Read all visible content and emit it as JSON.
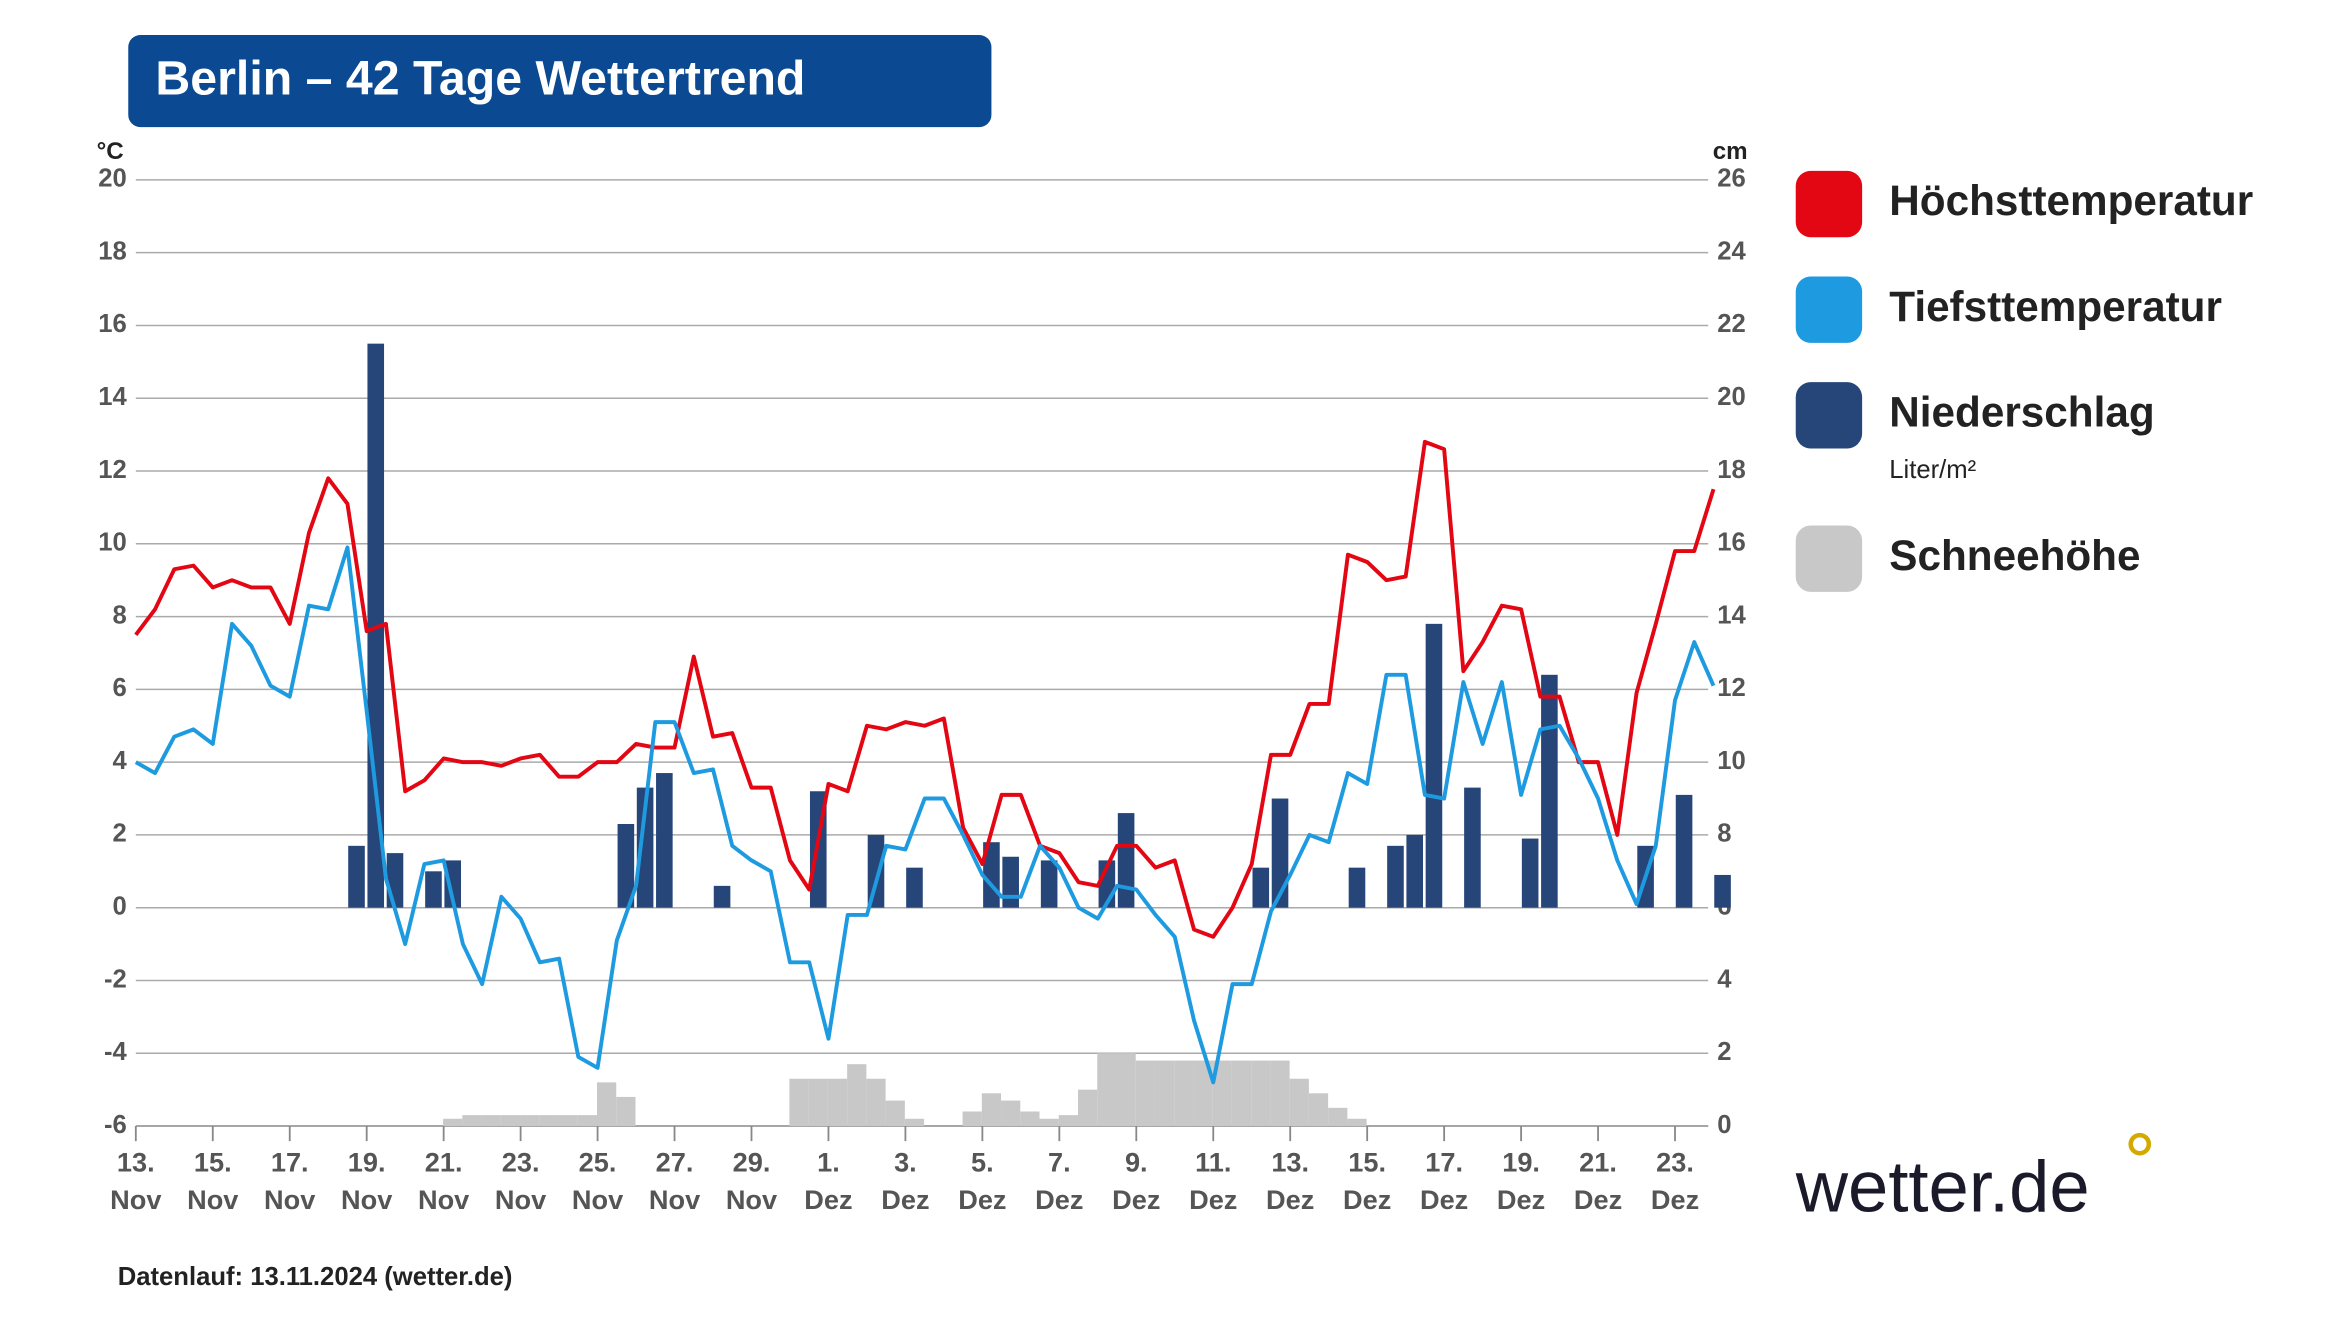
{
  "chart_data": {
    "type": "combo",
    "title": "Berlin – 42 Tage Wettertrend",
    "ylabel": "°C",
    "y2label": "cm",
    "categories": [
      "13. Nov",
      null,
      null,
      null,
      "15. Nov",
      null,
      null,
      null,
      "17. Nov",
      null,
      null,
      null,
      "19. Nov",
      null,
      null,
      null,
      "21. Nov",
      null,
      null,
      null,
      "23. Nov",
      null,
      null,
      null,
      "25. Nov",
      null,
      null,
      null,
      "27. Nov",
      null,
      null,
      null,
      "29. Nov",
      null,
      null,
      null,
      "1. Dez",
      null,
      null,
      null,
      "3. Dez",
      null,
      null,
      null,
      "5. Dez",
      null,
      null,
      null,
      "7. Dez",
      null,
      null,
      null,
      "9. Dez",
      null,
      null,
      null,
      "11. Dez",
      null,
      null,
      null,
      "13. Dez",
      null,
      null,
      null,
      "15. Dez",
      null,
      null,
      null,
      "17. Dez",
      null,
      null,
      null,
      "19. Dez",
      null,
      null,
      null,
      "21. Dez",
      null,
      null,
      null,
      "23. Dez",
      null,
      null
    ],
    "ylim": [
      -6,
      20
    ],
    "yticks": [
      -6,
      -4,
      -2,
      0,
      2,
      4,
      6,
      8,
      10,
      12,
      14,
      16,
      18,
      20
    ],
    "y2lim": [
      0,
      26
    ],
    "y2ticks": [
      0,
      2,
      4,
      6,
      8,
      10,
      12,
      14,
      16,
      18,
      20,
      22,
      24,
      26
    ],
    "grid": true,
    "legend": "right",
    "series": [
      {
        "name": "Höchsttemperatur",
        "type": "line",
        "color": "#e30613",
        "values": [
          7.5,
          8.2,
          9.3,
          9.4,
          8.8,
          9.0,
          8.8,
          8.8,
          7.8,
          10.3,
          11.8,
          11.1,
          7.6,
          7.8,
          3.2,
          3.5,
          4.1,
          4.0,
          4.0,
          3.9,
          4.1,
          4.2,
          3.6,
          3.6,
          4.0,
          4.0,
          4.5,
          4.4,
          4.4,
          6.9,
          4.7,
          4.8,
          3.3,
          3.3,
          1.3,
          0.5,
          3.4,
          3.2,
          5.0,
          4.9,
          5.1,
          5.0,
          5.2,
          2.2,
          1.2,
          3.1,
          3.1,
          1.7,
          1.5,
          0.7,
          0.6,
          1.7,
          1.7,
          1.1,
          1.3,
          -0.6,
          -0.8,
          0,
          1.2,
          4.2,
          4.2,
          5.6,
          5.6,
          9.7,
          9.5,
          9.0,
          9.1,
          12.8,
          12.6,
          6.5,
          7.3,
          8.3,
          8.2,
          5.8,
          5.8,
          4.0,
          4.0,
          2.0,
          5.9,
          7.8,
          9.8,
          9.8,
          11.5
        ]
      },
      {
        "name": "Tiefsttemperatur",
        "type": "line",
        "color": "#1e9be0",
        "values": [
          4.0,
          3.7,
          4.7,
          4.9,
          4.5,
          7.8,
          7.2,
          6.1,
          5.8,
          8.3,
          8.2,
          9.9,
          5.4,
          0.8,
          -1.0,
          1.2,
          1.3,
          -1.0,
          -2.1,
          0.3,
          -0.3,
          -1.5,
          -1.4,
          -4.1,
          -4.4,
          -0.9,
          0.6,
          5.1,
          5.1,
          3.7,
          3.8,
          1.7,
          1.3,
          1.0,
          -1.5,
          -1.5,
          -3.6,
          -0.2,
          -0.2,
          1.7,
          1.6,
          3.0,
          3.0,
          2.0,
          0.9,
          0.3,
          0.3,
          1.7,
          1.1,
          0,
          -0.3,
          0.6,
          0.5,
          -0.2,
          -0.8,
          -3.1,
          -4.8,
          -2.1,
          -2.1,
          -0.1,
          0.9,
          2.0,
          1.8,
          3.7,
          3.4,
          6.4,
          6.4,
          3.1,
          3.0,
          6.2,
          4.5,
          6.2,
          3.1,
          4.9,
          5.0,
          4.1,
          3.0,
          1.3,
          0.1,
          1.7,
          5.7,
          7.3,
          6.1
        ]
      },
      {
        "name": "Niederschlag",
        "unit": "Liter/m²",
        "type": "bar",
        "color": "#26467a",
        "values": [
          0,
          0,
          0,
          0,
          0,
          0,
          0,
          0,
          0,
          0,
          0,
          1.7,
          15.5,
          1.5,
          0,
          1.0,
          1.3,
          0,
          0,
          0,
          0,
          0,
          0,
          0,
          0,
          2.3,
          3.3,
          3.7,
          0,
          0,
          0.6,
          0,
          0,
          0,
          0,
          3.2,
          0,
          0,
          2.0,
          0,
          1.1,
          0,
          0,
          0,
          1.8,
          1.4,
          0,
          1.3,
          0,
          0,
          1.3,
          2.6,
          0,
          0,
          0,
          0,
          0,
          0,
          1.1,
          3.0,
          0,
          0,
          0,
          1.1,
          0,
          1.7,
          2.0,
          7.8,
          0,
          3.3,
          0,
          0,
          1.9,
          6.4,
          0,
          0,
          0,
          0,
          1.7,
          0,
          3.1,
          0,
          0.9
        ]
      },
      {
        "name": "Schneehöhe",
        "type": "bar",
        "axis": "y2",
        "color": "#c8c8c8",
        "values": [
          0,
          0,
          0,
          0,
          0,
          0,
          0,
          0,
          0,
          0,
          0,
          0,
          0,
          0,
          0,
          0,
          0.2,
          0.3,
          0.3,
          0.3,
          0.3,
          0.3,
          0.3,
          0.3,
          1.2,
          0.8,
          0,
          0,
          0,
          0,
          0,
          0,
          0,
          0,
          1.3,
          1.3,
          1.3,
          1.7,
          1.3,
          0.7,
          0.2,
          0,
          0,
          0.4,
          0.9,
          0.7,
          0.4,
          0.2,
          0.3,
          1.0,
          2.0,
          2.0,
          1.8,
          1.8,
          1.8,
          1.8,
          1.8,
          1.8,
          1.8,
          1.8,
          1.3,
          0.9,
          0.5,
          0.2,
          0,
          0,
          0,
          0,
          0,
          0,
          0,
          0,
          0,
          0,
          0,
          0,
          0,
          0,
          0,
          0,
          0,
          0,
          0
        ]
      }
    ]
  },
  "footnote": "Datenlauf: 13.11.2024 (wetter.de)",
  "logo": "wetter.de"
}
